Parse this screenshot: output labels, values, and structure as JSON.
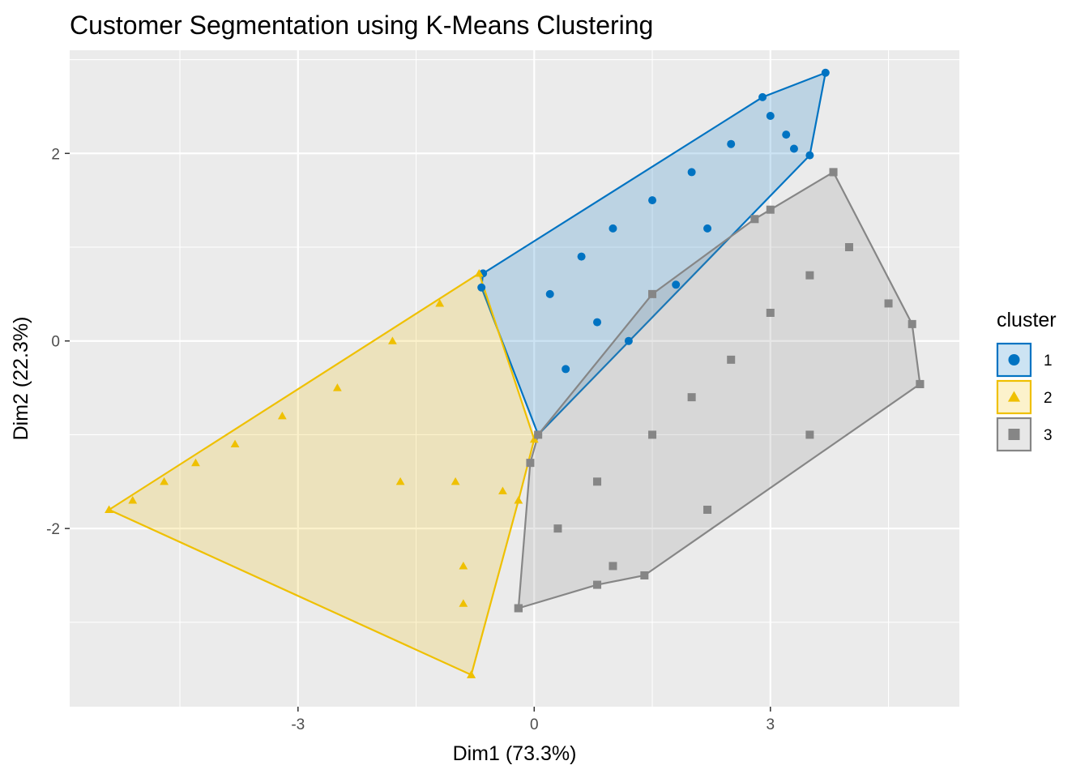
{
  "chart_data": {
    "type": "scatter",
    "title": "Customer Segmentation using K-Means Clustering",
    "xlabel": "Dim1 (73.3%)",
    "ylabel": "Dim2 (22.3%)",
    "xlim": [
      -5.9,
      5.4
    ],
    "ylim": [
      -3.9,
      3.1
    ],
    "x_ticks": [
      -3,
      0,
      3
    ],
    "y_ticks": [
      -2,
      0,
      2
    ],
    "grid": true,
    "legend": {
      "title": "cluster",
      "position": "right"
    },
    "series": [
      {
        "name": "1",
        "marker": "circle",
        "color": "#0073C2",
        "hull": [
          [
            -0.65,
            0.72
          ],
          [
            2.9,
            2.6
          ],
          [
            3.7,
            2.86
          ],
          [
            3.5,
            1.98
          ],
          [
            0.05,
            -1.0
          ],
          [
            -0.67,
            0.57
          ]
        ],
        "representative_points": [
          [
            0.2,
            0.5
          ],
          [
            0.6,
            0.9
          ],
          [
            1.0,
            1.2
          ],
          [
            1.5,
            1.5
          ],
          [
            2.0,
            1.8
          ],
          [
            2.5,
            2.1
          ],
          [
            3.0,
            2.4
          ],
          [
            0.8,
            0.2
          ],
          [
            1.2,
            0.0
          ],
          [
            1.8,
            0.6
          ],
          [
            0.4,
            -0.3
          ],
          [
            2.2,
            1.2
          ],
          [
            3.2,
            2.2
          ],
          [
            3.3,
            2.05
          ]
        ]
      },
      {
        "name": "2",
        "marker": "triangle",
        "color": "#EFC000",
        "hull": [
          [
            -5.4,
            -1.8
          ],
          [
            -0.7,
            0.72
          ],
          [
            0.0,
            -1.05
          ],
          [
            -0.2,
            -1.7
          ],
          [
            -0.8,
            -3.56
          ]
        ],
        "representative_points": [
          [
            -5.4,
            -1.8
          ],
          [
            -5.1,
            -1.7
          ],
          [
            -4.7,
            -1.5
          ],
          [
            -4.3,
            -1.3
          ],
          [
            -3.8,
            -1.1
          ],
          [
            -3.2,
            -0.8
          ],
          [
            -2.5,
            -0.5
          ],
          [
            -1.8,
            0.0
          ],
          [
            -1.2,
            0.4
          ],
          [
            -0.9,
            -2.4
          ],
          [
            -0.9,
            -2.8
          ],
          [
            -1.7,
            -1.5
          ],
          [
            -1.0,
            -1.5
          ],
          [
            -0.4,
            -1.6
          ],
          [
            -0.8,
            -3.56
          ]
        ]
      },
      {
        "name": "3",
        "marker": "square",
        "color": "#868686",
        "hull": [
          [
            -0.2,
            -2.85
          ],
          [
            0.8,
            -2.6
          ],
          [
            1.4,
            -2.5
          ],
          [
            4.9,
            -0.46
          ],
          [
            4.8,
            0.18
          ],
          [
            3.8,
            1.8
          ],
          [
            2.8,
            1.3
          ],
          [
            1.5,
            0.5
          ],
          [
            0.05,
            -1.0
          ],
          [
            -0.05,
            -1.3
          ],
          [
            -0.2,
            -2.85
          ]
        ],
        "representative_points": [
          [
            0.3,
            -2.0
          ],
          [
            0.8,
            -1.5
          ],
          [
            1.5,
            -1.0
          ],
          [
            2.0,
            -0.6
          ],
          [
            2.5,
            -0.2
          ],
          [
            3.0,
            0.3
          ],
          [
            3.5,
            0.7
          ],
          [
            4.0,
            1.0
          ],
          [
            4.5,
            0.4
          ],
          [
            4.9,
            -0.46
          ],
          [
            1.0,
            -2.4
          ],
          [
            2.2,
            -1.8
          ],
          [
            3.5,
            -1.0
          ],
          [
            3.0,
            1.4
          ],
          [
            3.8,
            1.8
          ],
          [
            -0.2,
            -2.85
          ]
        ]
      }
    ]
  }
}
